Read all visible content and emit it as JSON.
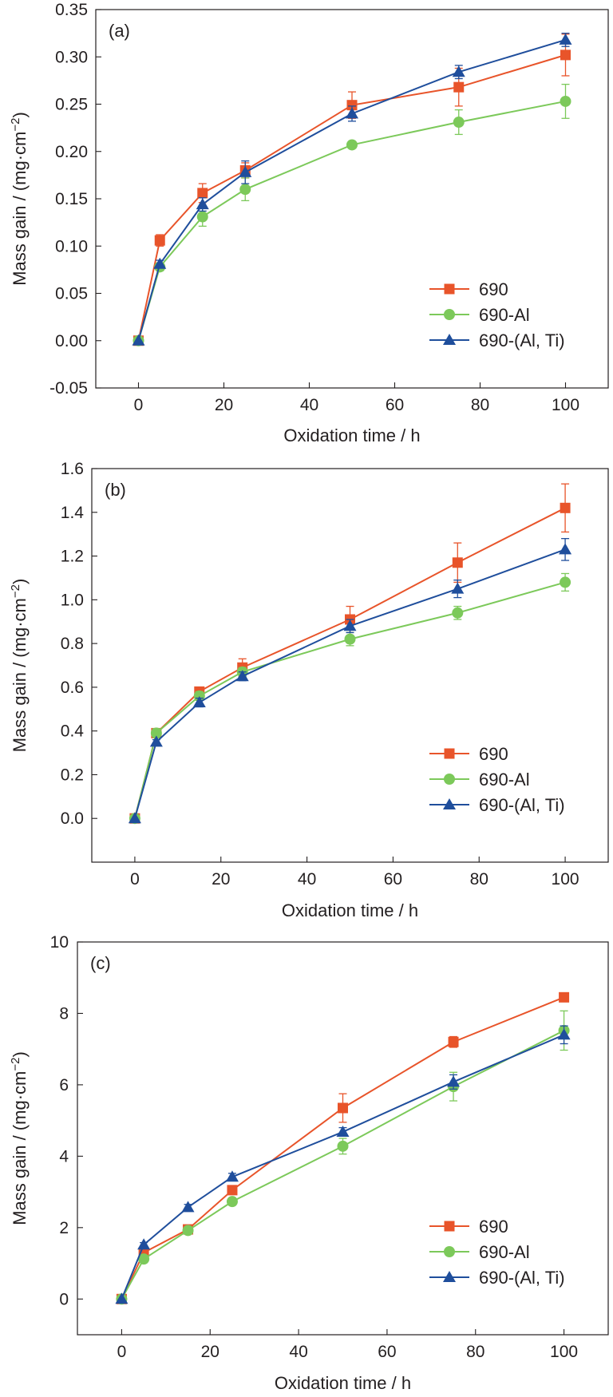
{
  "colors": {
    "690": "#e8542a",
    "690-Al": "#7cc95a",
    "690-(Al, Ti)": "#1f4e9c",
    "axis": "#231f20"
  },
  "chart_data": [
    {
      "type": "line",
      "panel_label": "(a)",
      "xlabel": "Oxidation time / h",
      "ylabel_main": "Mass gain / (mg·cm",
      "ylabel_sup": "−2",
      "ylabel_tail": ")",
      "xlim": [
        -10,
        110
      ],
      "ylim": [
        -0.05,
        0.35
      ],
      "xticks": [
        0,
        20,
        40,
        60,
        80,
        100
      ],
      "xtick_labels": [
        "0",
        "20",
        "40",
        "60",
        "80",
        "100"
      ],
      "yticks": [
        -0.05,
        0,
        0.05,
        0.1,
        0.15,
        0.2,
        0.25,
        0.3,
        0.35
      ],
      "ytick_labels": [
        "-0.05",
        "0.00",
        "0.05",
        "0.10",
        "0.15",
        "0.20",
        "0.25",
        "0.30",
        "0.35"
      ],
      "legend_position": "bottom-right",
      "series": [
        {
          "name": "690",
          "marker": "square",
          "x": [
            0,
            5,
            15,
            25,
            50,
            75,
            100
          ],
          "y": [
            0,
            0.106,
            0.156,
            0.18,
            0.249,
            0.268,
            0.302
          ],
          "err": [
            0,
            0.006,
            0.01,
            0.008,
            0.014,
            0.02,
            0.022
          ]
        },
        {
          "name": "690-Al",
          "marker": "circle",
          "x": [
            0,
            5,
            15,
            25,
            50,
            75,
            100
          ],
          "y": [
            0,
            0.078,
            0.131,
            0.16,
            0.207,
            0.231,
            0.253
          ],
          "err": [
            0,
            0.004,
            0.01,
            0.012,
            0.003,
            0.013,
            0.018
          ]
        },
        {
          "name": "690-(Al, Ti)",
          "marker": "triangle",
          "x": [
            0,
            5,
            15,
            25,
            50,
            75,
            100
          ],
          "y": [
            0,
            0.081,
            0.144,
            0.178,
            0.24,
            0.284,
            0.318
          ],
          "err": [
            0,
            0.004,
            0.007,
            0.012,
            0.008,
            0.007,
            0.007
          ]
        }
      ]
    },
    {
      "type": "line",
      "panel_label": "(b)",
      "xlabel": "Oxidation time / h",
      "ylabel_main": "Mass gain / (mg·cm",
      "ylabel_sup": "−2",
      "ylabel_tail": ")",
      "xlim": [
        -10,
        110
      ],
      "ylim": [
        -0.2,
        1.6
      ],
      "xticks": [
        0,
        20,
        40,
        60,
        80,
        100
      ],
      "xtick_labels": [
        "0",
        "20",
        "40",
        "60",
        "80",
        "100"
      ],
      "yticks": [
        0,
        0.2,
        0.4,
        0.6,
        0.8,
        1.0,
        1.2,
        1.4,
        1.6
      ],
      "ytick_labels": [
        "0.0",
        "0.2",
        "0.4",
        "0.6",
        "0.8",
        "1.0",
        "1.2",
        "1.4",
        "1.6"
      ],
      "legend_position": "bottom-right",
      "series": [
        {
          "name": "690",
          "marker": "square",
          "x": [
            0,
            5,
            15,
            25,
            50,
            75,
            100
          ],
          "y": [
            0,
            0.39,
            0.58,
            0.69,
            0.91,
            1.17,
            1.42
          ],
          "err": [
            0,
            0.02,
            0.02,
            0.04,
            0.06,
            0.09,
            0.11
          ]
        },
        {
          "name": "690-Al",
          "marker": "circle",
          "x": [
            0,
            5,
            15,
            25,
            50,
            75,
            100
          ],
          "y": [
            0,
            0.39,
            0.56,
            0.67,
            0.82,
            0.94,
            1.08
          ],
          "err": [
            0,
            0.02,
            0.02,
            0.02,
            0.03,
            0.03,
            0.04
          ]
        },
        {
          "name": "690-(Al, Ti)",
          "marker": "triangle",
          "x": [
            0,
            5,
            15,
            25,
            50,
            75,
            100
          ],
          "y": [
            0,
            0.35,
            0.53,
            0.65,
            0.88,
            1.05,
            1.23
          ],
          "err": [
            0,
            0.01,
            0.02,
            0.02,
            0.03,
            0.04,
            0.05
          ]
        }
      ]
    },
    {
      "type": "line",
      "panel_label": "(c)",
      "xlabel": "Oxidation time / h",
      "ylabel_main": "Mass gain / (mg·cm",
      "ylabel_sup": "−2",
      "ylabel_tail": ")",
      "xlim": [
        -10,
        110
      ],
      "ylim": [
        -1,
        10
      ],
      "xticks": [
        0,
        20,
        40,
        60,
        80,
        100
      ],
      "xtick_labels": [
        "0",
        "20",
        "40",
        "60",
        "80",
        "100"
      ],
      "yticks": [
        0,
        2,
        4,
        6,
        8,
        10
      ],
      "ytick_labels": [
        "0",
        "2",
        "4",
        "6",
        "8",
        "10"
      ],
      "legend_position": "bottom-right",
      "series": [
        {
          "name": "690",
          "marker": "square",
          "x": [
            0,
            5,
            15,
            25,
            50,
            75,
            100
          ],
          "y": [
            0,
            1.3,
            1.95,
            3.05,
            5.35,
            7.2,
            8.45
          ],
          "err": [
            0,
            0.08,
            0.08,
            0.12,
            0.4,
            0.15,
            0.1
          ]
        },
        {
          "name": "690-Al",
          "marker": "circle",
          "x": [
            0,
            5,
            15,
            25,
            50,
            75,
            100
          ],
          "y": [
            0,
            1.12,
            1.92,
            2.73,
            4.28,
            5.95,
            7.52
          ],
          "err": [
            0,
            0.08,
            0.08,
            0.1,
            0.22,
            0.4,
            0.55
          ]
        },
        {
          "name": "690-(Al, Ti)",
          "marker": "triangle",
          "x": [
            0,
            5,
            15,
            25,
            50,
            75,
            100
          ],
          "y": [
            0,
            1.52,
            2.57,
            3.42,
            4.68,
            6.08,
            7.4
          ],
          "err": [
            0,
            0.06,
            0.08,
            0.1,
            0.12,
            0.2,
            0.25
          ]
        }
      ]
    }
  ]
}
